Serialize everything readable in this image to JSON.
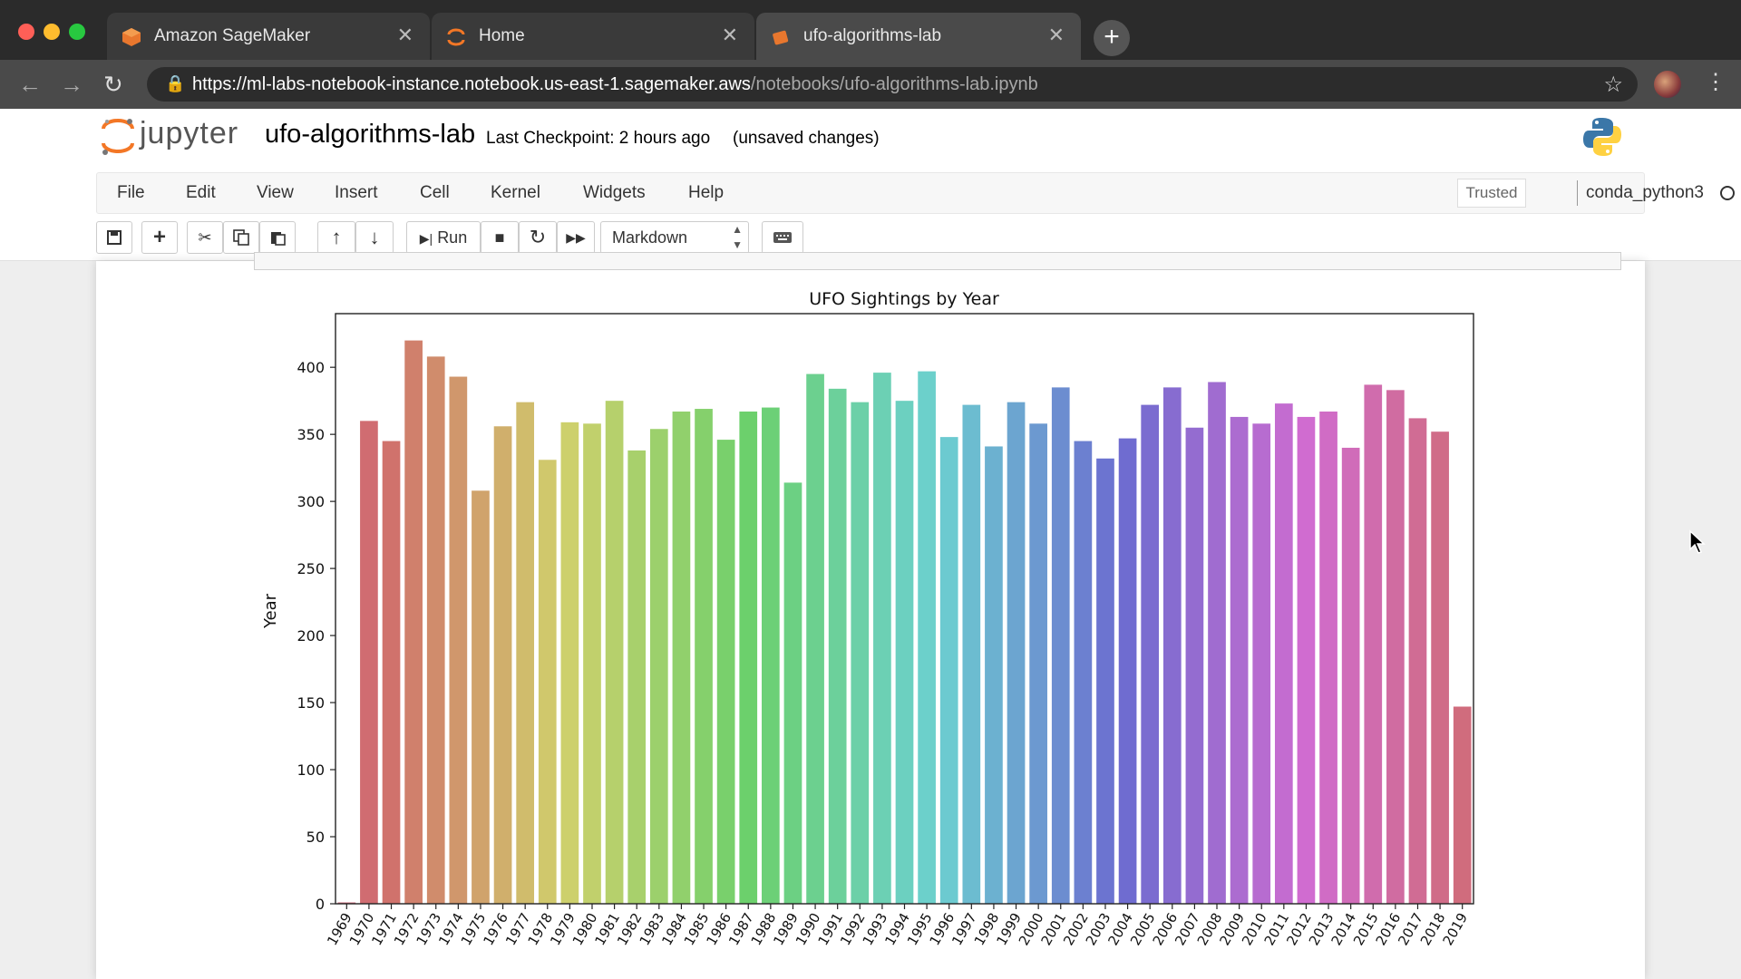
{
  "browser": {
    "tabs": [
      {
        "title": "Amazon SageMaker",
        "active": false
      },
      {
        "title": "Home",
        "active": false
      },
      {
        "title": "ufo-algorithms-lab",
        "active": true
      }
    ],
    "close_glyph": "✕",
    "newtab_glyph": "+",
    "url_main": "https://ml-labs-notebook-instance.notebook.us-east-1.sagemaker.aws",
    "url_path": "/notebooks/ufo-algorithms-lab.ipynb"
  },
  "jupyter": {
    "logo_text": "jupyter",
    "notebook_name": "ufo-algorithms-lab",
    "checkpoint": "Last Checkpoint: 2 hours ago",
    "unsaved": "(unsaved changes)",
    "menu": [
      "File",
      "Edit",
      "View",
      "Insert",
      "Cell",
      "Kernel",
      "Widgets",
      "Help"
    ],
    "trusted": "Trusted",
    "kernel": "conda_python3",
    "toolbar": {
      "run_label": "Run",
      "cell_type": "Markdown"
    }
  },
  "chart_data": {
    "type": "bar",
    "title": "UFO Sightings by Year",
    "xlabel": "",
    "ylabel": "Year",
    "ylim": [
      0,
      440
    ],
    "yticks": [
      0,
      50,
      100,
      150,
      200,
      250,
      300,
      350,
      400
    ],
    "grid": false,
    "categories": [
      "1969",
      "1970",
      "1971",
      "1972",
      "1973",
      "1974",
      "1975",
      "1976",
      "1977",
      "1978",
      "1979",
      "1980",
      "1981",
      "1982",
      "1983",
      "1984",
      "1985",
      "1986",
      "1987",
      "1988",
      "1989",
      "1990",
      "1991",
      "1992",
      "1993",
      "1994",
      "1995",
      "1996",
      "1997",
      "1998",
      "1999",
      "2000",
      "2001",
      "2002",
      "2003",
      "2004",
      "2005",
      "2006",
      "2007",
      "2008",
      "2009",
      "2010",
      "2011",
      "2012",
      "2013",
      "2014",
      "2015",
      "2016",
      "2017",
      "2018",
      "2019"
    ],
    "values": [
      1,
      360,
      345,
      420,
      408,
      393,
      308,
      356,
      374,
      331,
      359,
      358,
      375,
      338,
      354,
      367,
      369,
      346,
      367,
      370,
      314,
      395,
      384,
      374,
      396,
      375,
      397,
      348,
      372,
      341,
      374,
      358,
      385,
      345,
      332,
      347,
      372,
      385,
      355,
      389,
      363,
      358,
      373,
      363,
      367,
      340,
      387,
      383,
      362,
      352,
      147
    ]
  }
}
